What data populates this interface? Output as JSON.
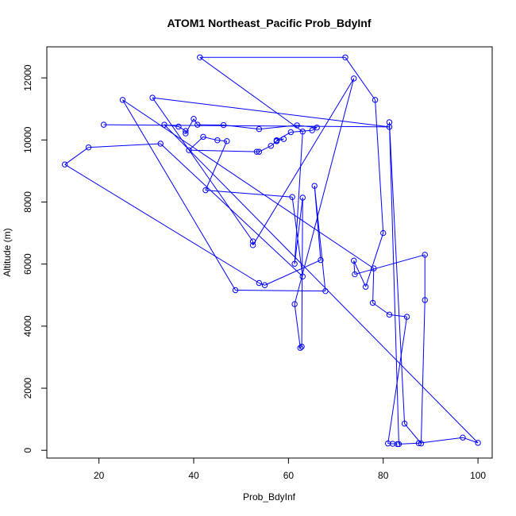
{
  "chart_data": {
    "type": "scatter",
    "title": "ATOM1 Northeast_Pacific Prob_BdyInf",
    "xlabel": "Prob_BdyInf",
    "ylabel": "Altitude (m)",
    "xlim": [
      9,
      103
    ],
    "ylim": [
      -250,
      13000
    ],
    "xticks": [
      20,
      40,
      60,
      80,
      100
    ],
    "yticks": [
      0,
      2000,
      4000,
      6000,
      8000,
      10000,
      12000
    ],
    "style": {
      "line_color": "#0000ff",
      "marker": "open-circle",
      "connected": true
    },
    "series": [
      {
        "name": "",
        "points": [
          [
            21.0,
            10490
          ],
          [
            81.3,
            10420
          ],
          [
            31.3,
            11360
          ],
          [
            52.5,
            6730
          ],
          [
            52.5,
            6610
          ],
          [
            73.8,
            11980
          ],
          [
            61.3,
            4710
          ],
          [
            62.5,
            3300
          ],
          [
            62.8,
            3340
          ],
          [
            63.0,
            8140
          ],
          [
            61.3,
            6010
          ],
          [
            63.0,
            10270
          ],
          [
            41.3,
            12660
          ],
          [
            72.0,
            12660
          ],
          [
            78.3,
            11290
          ],
          [
            80.0,
            7000
          ],
          [
            76.3,
            5270
          ],
          [
            73.8,
            6110
          ],
          [
            74.0,
            5670
          ],
          [
            88.8,
            6300
          ],
          [
            88.8,
            4840
          ],
          [
            88.0,
            220
          ],
          [
            84.5,
            860
          ],
          [
            81.3,
            10570
          ],
          [
            83.3,
            200
          ],
          [
            87.5,
            230
          ],
          [
            96.8,
            410
          ],
          [
            100.0,
            240
          ],
          [
            33.8,
            10490
          ],
          [
            36.8,
            10430
          ],
          [
            38.3,
            10290
          ],
          [
            38.3,
            10210
          ],
          [
            40.0,
            10680
          ],
          [
            40.8,
            10490
          ],
          [
            46.3,
            10480
          ],
          [
            53.8,
            10350
          ],
          [
            61.8,
            10470
          ],
          [
            66.0,
            10400
          ],
          [
            65.0,
            10310
          ],
          [
            60.5,
            10250
          ],
          [
            57.5,
            9990
          ],
          [
            59.0,
            10030
          ],
          [
            57.5,
            9970
          ],
          [
            57.5,
            9960
          ],
          [
            56.3,
            9810
          ],
          [
            53.8,
            9620
          ],
          [
            53.3,
            9620
          ],
          [
            39.0,
            9670
          ],
          [
            42.0,
            10100
          ],
          [
            45.0,
            9990
          ],
          [
            47.0,
            9960
          ],
          [
            42.5,
            8380
          ],
          [
            60.8,
            8160
          ],
          [
            63.0,
            5600
          ],
          [
            33.0,
            9880
          ],
          [
            17.8,
            9760
          ],
          [
            12.8,
            9210
          ],
          [
            53.8,
            5390
          ],
          [
            55.0,
            5320
          ],
          [
            66.8,
            6130
          ],
          [
            65.5,
            8520
          ],
          [
            67.8,
            5130
          ],
          [
            48.8,
            5160
          ],
          [
            25.0,
            11290
          ],
          [
            78.0,
            5860
          ],
          [
            77.8,
            4750
          ],
          [
            81.3,
            4370
          ],
          [
            85.0,
            4300
          ],
          [
            81.0,
            220
          ],
          [
            82.0,
            210
          ],
          [
            83.0,
            200
          ]
        ]
      }
    ]
  }
}
